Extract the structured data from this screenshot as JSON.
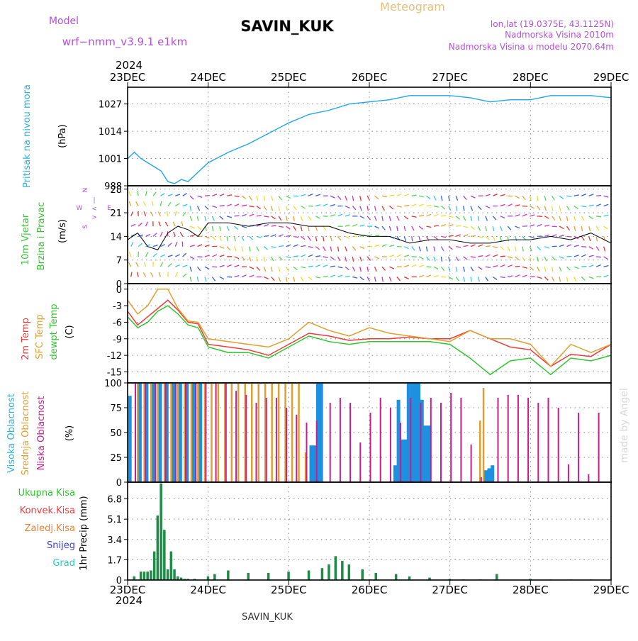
{
  "header": {
    "title": "SAVIN_KUK",
    "meteogram_label": "Meteogram",
    "model_label": "Model",
    "model_name": "wrf−nmm_v3.9.1  e1km",
    "lonlat": "lon,lat (19.0375E, 43.1125N)",
    "altitude": "Nadmorska Visina 2010m",
    "model_altitude": "Nadmorska Visina u modelu 2070.64m",
    "year_top": "2024",
    "year_bottom": "2024",
    "footer": "SAVIN_KUK",
    "watermark": "made by Angel"
  },
  "colors": {
    "pressure": "#1ea7e8",
    "temp2m": "#f03a3a",
    "sfc": "#e0a030",
    "dewpt": "#2ec82e",
    "high_cloud": "#1e90e0",
    "mid_cloud": "#e0a030",
    "low_cloud": "#c81e8c",
    "precip": "#1e8c46",
    "cyan_label": "#28b4dc",
    "purple_label": "#b450dc"
  },
  "dates": [
    "23DEC",
    "24DEC",
    "25DEC",
    "26DEC",
    "27DEC",
    "28DEC",
    "29DEC"
  ],
  "chart_data": [
    {
      "type": "line",
      "panel": "pressure",
      "ylabel": [
        "Pritisak na nivou mora",
        "(hPa)"
      ],
      "yticks": [
        988,
        1001,
        1014,
        1027
      ],
      "ylim": [
        988,
        1035
      ],
      "x": [
        0,
        2,
        4,
        6,
        8,
        10,
        12,
        14,
        16,
        18,
        20,
        22,
        24,
        30,
        36,
        42,
        48,
        54,
        60,
        66,
        72,
        78,
        84,
        90,
        96,
        102,
        108,
        114,
        120,
        126,
        132,
        138,
        144
      ],
      "series": [
        {
          "values": [
            1001,
            1004,
            1001,
            999,
            997,
            995,
            990,
            989,
            991,
            990,
            993,
            996,
            999,
            1004,
            1008,
            1013,
            1018,
            1022,
            1024,
            1027,
            1028,
            1029,
            1031,
            1031,
            1031,
            1030,
            1028,
            1029,
            1029,
            1031,
            1031,
            1031,
            1030
          ]
        }
      ],
      "grid": true
    },
    {
      "type": "line",
      "panel": "wind",
      "ylabel": [
        "10m Vjetar",
        "Brzina i Pravac",
        "(m/s)"
      ],
      "yticks": [
        0,
        7,
        14,
        21,
        28
      ],
      "ylim": [
        0,
        29
      ],
      "compass": [
        "N",
        "<",
        "|",
        ">",
        "S",
        "W",
        "E"
      ],
      "x": [
        0,
        3,
        6,
        9,
        12,
        15,
        18,
        21,
        24,
        30,
        36,
        42,
        48,
        54,
        60,
        66,
        72,
        78,
        84,
        90,
        96,
        102,
        108,
        114,
        120,
        126,
        132,
        138,
        144
      ],
      "series": [
        {
          "values": [
            13,
            15,
            11,
            10,
            15,
            17,
            16,
            14,
            18,
            18,
            17,
            18,
            18,
            17,
            17,
            15,
            14,
            14,
            12,
            13,
            13,
            12,
            12,
            13,
            13,
            14,
            13,
            15,
            12
          ]
        }
      ],
      "grid": true
    },
    {
      "type": "line",
      "panel": "temperature",
      "ylabel": [
        "2m Temp",
        "SFC Temp",
        "dewpt Temp",
        "(C)"
      ],
      "yticks": [
        0,
        -3,
        -6,
        -9,
        -12,
        -15
      ],
      "ylim": [
        -17,
        1
      ],
      "x": [
        0,
        3,
        6,
        9,
        12,
        15,
        18,
        21,
        24,
        30,
        36,
        42,
        48,
        54,
        60,
        66,
        72,
        78,
        84,
        90,
        96,
        102,
        108,
        114,
        120,
        126,
        132,
        138,
        144
      ],
      "series": [
        {
          "name": "2m Temp",
          "values": [
            -4,
            -6.5,
            -5,
            -3.5,
            -2,
            -3.8,
            -6,
            -6.3,
            -10,
            -10.5,
            -11,
            -12,
            -10,
            -8,
            -8.5,
            -9.3,
            -9,
            -9,
            -8.7,
            -9,
            -9,
            -7.5,
            -9,
            -10.5,
            -11,
            -14,
            -11.8,
            -12.2,
            -10
          ]
        },
        {
          "name": "SFC Temp",
          "values": [
            -2,
            -4.5,
            -3,
            0,
            0,
            -3.5,
            -5.8,
            -6,
            -9,
            -9.5,
            -10,
            -10.5,
            -9,
            -6,
            -7.5,
            -8.5,
            -7,
            -8,
            -8.5,
            -9,
            -9.5,
            -7.5,
            -9,
            -9,
            -10,
            -14,
            -10,
            -11.5,
            -10
          ]
        },
        {
          "name": "dewpt Temp",
          "values": [
            -5,
            -7,
            -6,
            -4,
            -3,
            -4.5,
            -6.5,
            -7,
            -10.5,
            -11.5,
            -11.5,
            -12.5,
            -10.5,
            -8.5,
            -9.5,
            -10,
            -9.5,
            -9.5,
            -9.5,
            -9.5,
            -10,
            -12.5,
            -15.5,
            -13,
            -12.5,
            -15.5,
            -12.5,
            -13,
            -12
          ]
        }
      ],
      "grid": true
    },
    {
      "type": "bar",
      "panel": "clouds",
      "ylabel": [
        "Visoka Oblacnost",
        "Srednja Oblacnost",
        "Niska Oblacnost",
        "(%)"
      ],
      "yticks": [
        0,
        25,
        50,
        75,
        100
      ],
      "ylim": [
        0,
        100
      ],
      "series": [
        {
          "name": "Visoka Oblacnost",
          "x": [
            1,
            4,
            6,
            8,
            10,
            12,
            14,
            16,
            18,
            20,
            22,
            55,
            56,
            57,
            58,
            80,
            81,
            82,
            83,
            84,
            85,
            86,
            87,
            88,
            89,
            90,
            107,
            108,
            109
          ],
          "values": [
            87,
            100,
            100,
            100,
            100,
            100,
            100,
            100,
            100,
            100,
            100,
            37,
            37,
            100,
            100,
            17,
            83,
            43,
            43,
            100,
            100,
            100,
            100,
            83,
            57,
            57,
            12,
            14,
            17
          ]
        },
        {
          "name": "Srednja Oblacnost",
          "x": [
            3,
            5,
            7,
            9,
            11,
            13,
            15,
            17,
            19,
            21,
            23,
            25,
            27,
            29,
            31,
            33,
            35,
            37,
            39,
            41,
            43,
            45,
            47,
            49,
            51,
            53,
            105,
            106
          ],
          "values": [
            100,
            100,
            100,
            100,
            100,
            100,
            100,
            100,
            100,
            100,
            100,
            100,
            100,
            100,
            100,
            100,
            100,
            100,
            100,
            100,
            100,
            100,
            100,
            100,
            100,
            30,
            62,
            95
          ]
        },
        {
          "name": "Niska Oblacnost",
          "x": [
            2,
            5,
            8,
            11,
            14,
            17,
            20,
            23,
            26,
            29,
            32,
            35,
            38,
            41,
            44,
            47,
            50,
            53,
            56,
            60,
            63,
            66,
            69,
            72,
            75,
            78,
            81,
            84,
            87,
            90,
            93,
            96,
            99,
            102,
            105,
            110,
            113,
            116,
            119,
            122,
            125,
            128,
            131,
            134,
            137,
            140
          ],
          "values": [
            100,
            100,
            100,
            100,
            100,
            100,
            100,
            100,
            100,
            100,
            92,
            88,
            80,
            85,
            85,
            75,
            68,
            60,
            62,
            80,
            85,
            80,
            40,
            70,
            85,
            75,
            60,
            85,
            80,
            85,
            80,
            90,
            85,
            38,
            5,
            85,
            88,
            88,
            85,
            80,
            85,
            75,
            18,
            70,
            8,
            70
          ]
        }
      ],
      "grid": true
    },
    {
      "type": "bar",
      "panel": "precipitation",
      "ylabel": [
        "1hr Precip (mm)"
      ],
      "yticks": [
        0,
        1.7,
        3.4,
        5.1,
        6.8
      ],
      "ylim": [
        0,
        8.2
      ],
      "legend": [
        "Ukupna Kisa",
        "Konvek.Kisa",
        "Zaledj.Kisa",
        "Snijeg",
        "Grad"
      ],
      "x": [
        2,
        4,
        5,
        6,
        7,
        8,
        9,
        10,
        11,
        12,
        13,
        14,
        15,
        16,
        17,
        18,
        20,
        24,
        26,
        30,
        36,
        42,
        48,
        54,
        58,
        60,
        62,
        64,
        66,
        70,
        74,
        80,
        84,
        90,
        96,
        100,
        105,
        110,
        120,
        126,
        132,
        138
      ],
      "values": [
        0.3,
        0.7,
        0.7,
        0.7,
        0.8,
        2.4,
        5.4,
        8.1,
        4.2,
        0.9,
        2.4,
        0.9,
        0.3,
        0.2,
        0.1,
        0.1,
        0.1,
        0.3,
        0.5,
        0.8,
        0.6,
        0.6,
        0.7,
        0.8,
        1.0,
        1.3,
        2.0,
        1.6,
        1.3,
        0.9,
        0.6,
        0.5,
        0.3,
        0.2,
        0.1,
        0.05,
        0.05,
        0.5,
        0.1,
        0.05,
        0.05,
        0.05
      ],
      "grid": true
    }
  ]
}
